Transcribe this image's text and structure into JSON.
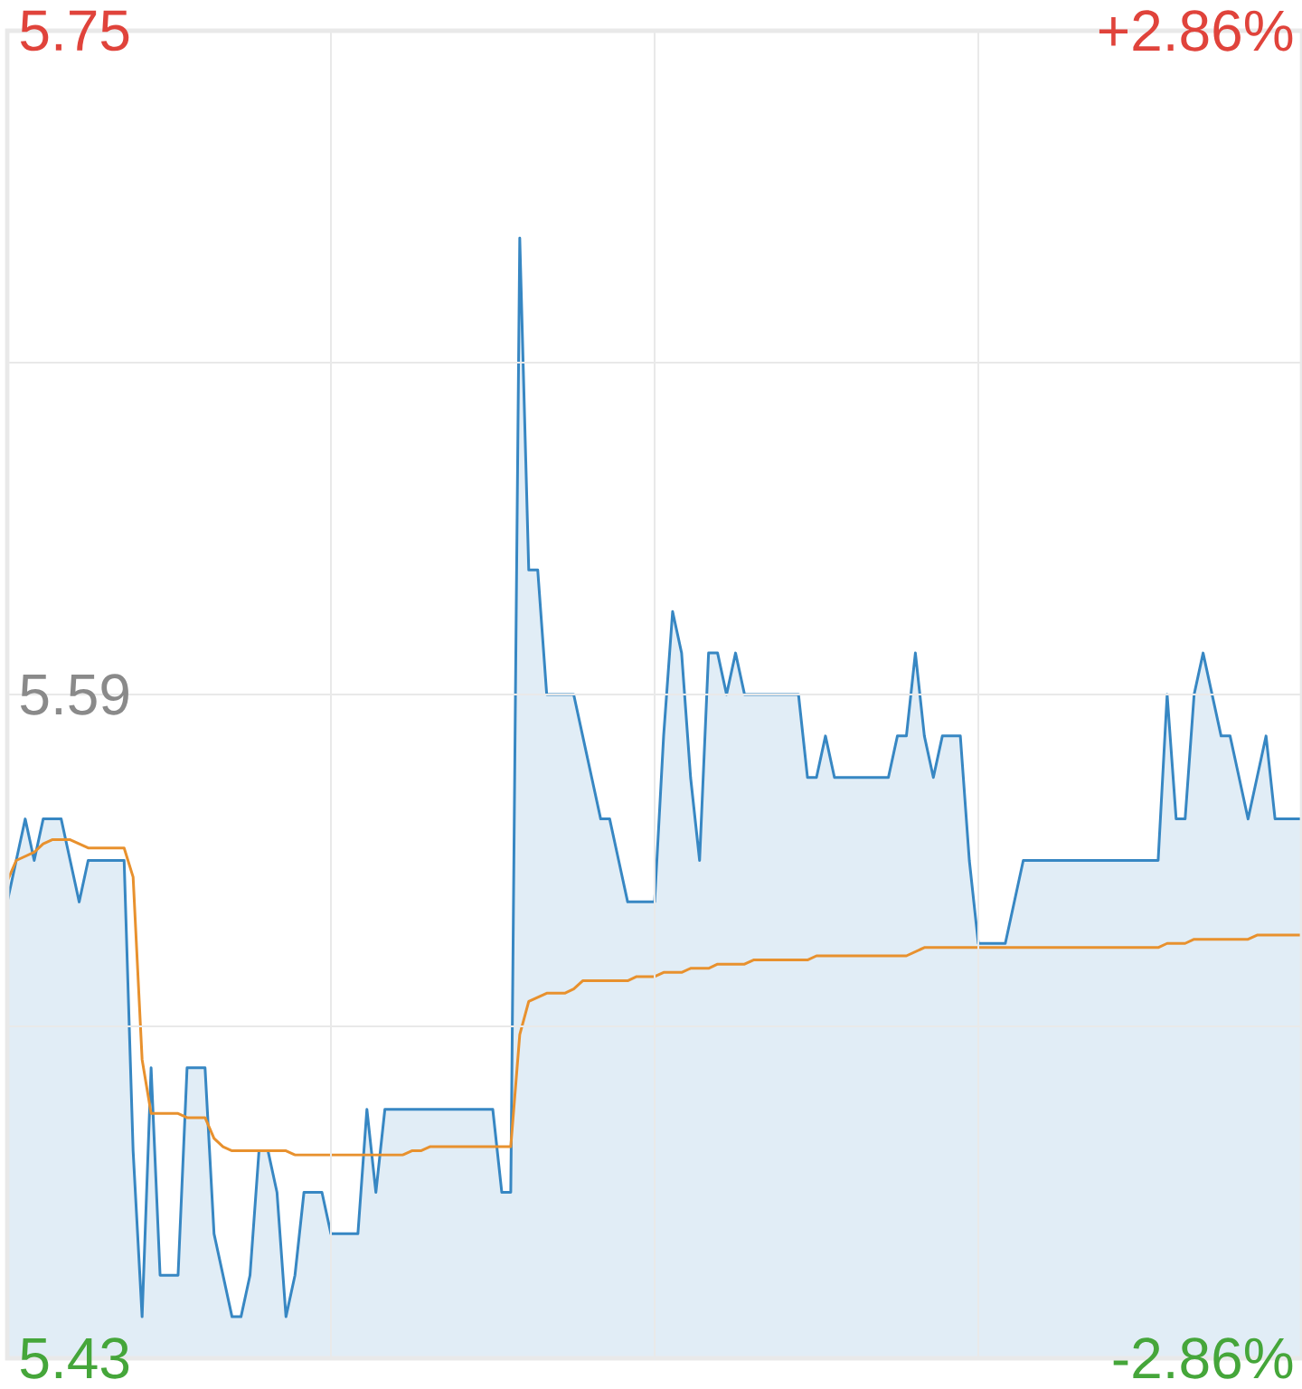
{
  "chart_data": {
    "type": "area",
    "categories": [
      null,
      null,
      null,
      null,
      null,
      null,
      null,
      null,
      null,
      null,
      null,
      null,
      null,
      null,
      null,
      null,
      null,
      null,
      null,
      null,
      null,
      null,
      null,
      null,
      null,
      null,
      null,
      null,
      null,
      null,
      null,
      null,
      null,
      null,
      null,
      null,
      null,
      null,
      null,
      null,
      null,
      null,
      null,
      null,
      null,
      null,
      null,
      null,
      null,
      null,
      null,
      null,
      null,
      null,
      null,
      null,
      null,
      null,
      null,
      null,
      null,
      null,
      null,
      null,
      null,
      null,
      null,
      null,
      null,
      null,
      null,
      null,
      null,
      null,
      null,
      null,
      null,
      null,
      null,
      null,
      null,
      null,
      null,
      null,
      null,
      null,
      null,
      null,
      null,
      null,
      null,
      null,
      null,
      null,
      null,
      null,
      null,
      null,
      null,
      null,
      null,
      null,
      null,
      null,
      null,
      null,
      null,
      null,
      null,
      null,
      null,
      null,
      null,
      null,
      null,
      null,
      null,
      null,
      null,
      null,
      null,
      null,
      null,
      null,
      null,
      null,
      null,
      null,
      null,
      null,
      null,
      null,
      null,
      null,
      null,
      null,
      null,
      null,
      null,
      null,
      null,
      null,
      null,
      null,
      null
    ],
    "series": [
      {
        "color": "#e1edf6",
        "values": [
          5.54,
          5.55,
          5.56,
          5.55,
          5.56,
          5.56,
          5.56,
          5.55,
          5.54,
          5.55,
          5.55,
          5.55,
          5.55,
          5.55,
          5.48,
          5.44,
          5.5,
          5.45,
          5.45,
          5.45,
          5.5,
          5.5,
          5.5,
          5.46,
          5.45,
          5.44,
          5.44,
          5.45,
          5.48,
          5.48,
          5.47,
          5.44,
          5.45,
          5.47,
          5.47,
          5.47,
          5.46,
          5.46,
          5.46,
          5.46,
          5.49,
          5.47,
          5.49,
          5.49,
          5.49,
          5.49,
          5.49,
          5.49,
          5.49,
          5.49,
          5.49,
          5.49,
          5.49,
          5.49,
          5.49,
          5.47,
          5.47,
          5.7,
          5.62,
          5.62,
          5.59,
          5.59,
          5.59,
          5.59,
          5.58,
          5.57,
          5.56,
          5.56,
          5.55,
          5.54,
          5.54,
          5.54,
          5.54,
          5.58,
          5.61,
          5.6,
          5.57,
          5.55,
          5.6,
          5.6,
          5.59,
          5.6,
          5.59,
          5.59,
          5.59,
          5.59,
          5.59,
          5.59,
          5.59,
          5.57,
          5.57,
          5.58,
          5.57,
          5.57,
          5.57,
          5.57,
          5.57,
          5.57,
          5.57,
          5.58,
          5.58,
          5.6,
          5.58,
          5.57,
          5.58,
          5.58,
          5.58,
          5.55,
          5.53,
          5.53,
          5.53,
          5.53,
          5.54,
          5.55,
          5.55,
          5.55,
          5.55,
          5.55,
          5.55,
          5.55,
          5.55,
          5.55,
          5.55,
          5.55,
          5.55,
          5.55,
          5.55,
          5.55,
          5.55,
          5.59,
          5.56,
          5.56,
          5.59,
          5.6,
          5.59,
          5.58,
          5.58,
          5.57,
          5.56,
          5.57,
          5.58,
          5.56,
          5.56,
          5.56,
          5.56
        ]
      },
      {
        "type": "line",
        "color": "#e8912e",
        "values": [
          5.545,
          5.55,
          5.551,
          5.552,
          5.554,
          5.555,
          5.555,
          5.555,
          5.554,
          5.553,
          5.553,
          5.553,
          5.553,
          5.553,
          5.546,
          5.502,
          5.489,
          5.489,
          5.489,
          5.489,
          5.488,
          5.488,
          5.488,
          5.483,
          5.481,
          5.48,
          5.48,
          5.48,
          5.48,
          5.48,
          5.48,
          5.48,
          5.479,
          5.479,
          5.479,
          5.479,
          5.479,
          5.479,
          5.479,
          5.479,
          5.479,
          5.479,
          5.479,
          5.479,
          5.479,
          5.48,
          5.48,
          5.481,
          5.481,
          5.481,
          5.481,
          5.481,
          5.481,
          5.481,
          5.481,
          5.481,
          5.481,
          5.508,
          5.516,
          5.517,
          5.518,
          5.518,
          5.518,
          5.519,
          5.521,
          5.521,
          5.521,
          5.521,
          5.521,
          5.521,
          5.522,
          5.522,
          5.522,
          5.523,
          5.523,
          5.523,
          5.524,
          5.524,
          5.524,
          5.525,
          5.525,
          5.525,
          5.525,
          5.526,
          5.526,
          5.526,
          5.526,
          5.526,
          5.526,
          5.526,
          5.527,
          5.527,
          5.527,
          5.527,
          5.527,
          5.527,
          5.527,
          5.527,
          5.527,
          5.527,
          5.527,
          5.528,
          5.529,
          5.529,
          5.529,
          5.529,
          5.529,
          5.529,
          5.529,
          5.529,
          5.529,
          5.529,
          5.529,
          5.529,
          5.529,
          5.529,
          5.529,
          5.529,
          5.529,
          5.529,
          5.529,
          5.529,
          5.529,
          5.529,
          5.529,
          5.529,
          5.529,
          5.529,
          5.529,
          5.53,
          5.53,
          5.53,
          5.531,
          5.531,
          5.531,
          5.531,
          5.531,
          5.531,
          5.531,
          5.532,
          5.532,
          5.532,
          5.532,
          5.532,
          5.532
        ]
      }
    ],
    "ylim": [
      5.43,
      5.75
    ],
    "yticks": [
      5.43,
      {
        "value": 5.51,
        "label": null
      },
      5.59,
      {
        "value": 5.67,
        "label": null
      },
      5.75
    ],
    "y2lim": [
      -2.86,
      2.86
    ],
    "y2ticks": [
      {
        "value": -2.86,
        "label": "-2.86%"
      },
      {
        "value": 2.86,
        "label": "+2.86%"
      }
    ],
    "grid": true
  }
}
